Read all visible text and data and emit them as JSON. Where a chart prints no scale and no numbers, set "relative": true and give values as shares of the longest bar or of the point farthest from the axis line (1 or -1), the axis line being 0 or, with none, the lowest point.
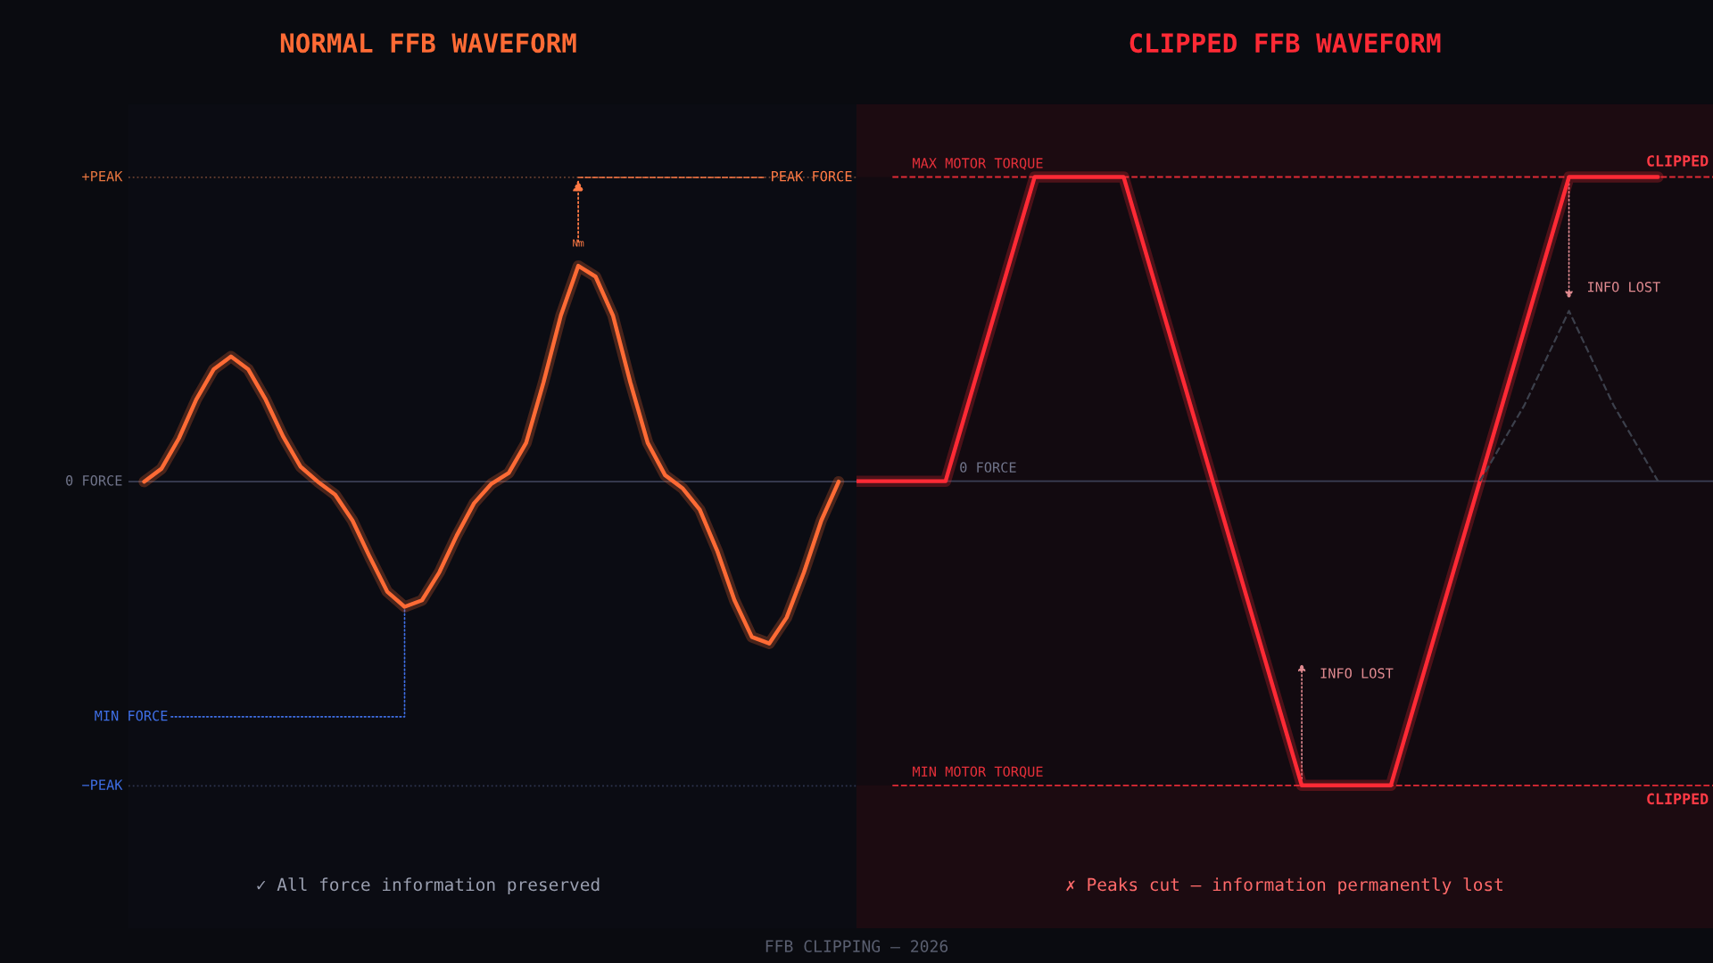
{
  "chart_data": [
    {
      "type": "line",
      "title": "NORMAL FFB WAVEFORM",
      "relative": true,
      "categories": [
        null,
        null,
        null,
        null,
        null,
        null,
        null,
        null,
        null,
        null,
        null,
        null,
        null,
        null,
        null,
        null,
        null,
        null,
        null,
        null,
        null,
        null,
        null,
        null,
        null,
        null,
        null,
        null,
        null,
        null,
        null,
        null,
        null,
        null,
        null,
        null,
        null,
        null,
        null,
        null,
        null
      ],
      "series": [
        {
          "color": "#ff6b35",
          "values": [
            0,
            0.06,
            0.2,
            0.38,
            0.52,
            0.58,
            0.52,
            0.38,
            0.21,
            0.07,
            0,
            -0.06,
            -0.18,
            -0.35,
            -0.51,
            -0.58,
            -0.55,
            -0.42,
            -0.25,
            -0.1,
            -0.01,
            0.04,
            0.18,
            0.46,
            0.77,
            1,
            0.95,
            0.77,
            0.46,
            0.18,
            0.03,
            -0.03,
            -0.13,
            -0.32,
            -0.55,
            -0.72,
            -0.75,
            -0.63,
            -0.42,
            -0.18,
            0
          ]
        }
      ],
      "ref_lines": [
        {
          "axis": "y",
          "value": 1.41,
          "label": "+PEAK",
          "color": "#6a4030",
          "line_style": "dotted"
        },
        {
          "axis": "y",
          "value": 0,
          "label": "0 FORCE",
          "color": "#3b3f55"
        },
        {
          "axis": "y",
          "value": -1.41,
          "label": "−PEAK",
          "color": "#2e3550",
          "line_style": "dotted"
        }
      ],
      "annotations": [
        "PEAK FORCE",
        "Nm",
        "MIN FORCE",
        "✓ All force information preserved"
      ]
    },
    {
      "type": "line",
      "title": "CLIPPED FFB WAVEFORM",
      "relative": true,
      "categories": [
        null,
        null,
        null,
        null,
        null,
        null,
        null,
        null,
        null,
        null,
        null,
        null,
        null,
        null,
        null,
        null,
        null,
        null,
        null
      ],
      "series": [
        {
          "color": "#ff2a35",
          "values": [
            0,
            0,
            0,
            0.5,
            1,
            1,
            1,
            0.5,
            0,
            -0.5,
            -1,
            -1,
            -1,
            -0.5,
            0,
            0.5,
            1,
            1,
            1
          ]
        },
        {
          "color": "#3c404c",
          "line_style": "dashed",
          "values": [
            null,
            null,
            null,
            null,
            null,
            null,
            null,
            null,
            null,
            null,
            null,
            null,
            null,
            null,
            0,
            0.25,
            0.56,
            0.25,
            0
          ]
        }
      ],
      "ref_lines": [
        {
          "axis": "y",
          "value": 1,
          "label": "MAX MOTOR TORQUE",
          "color": "#e02a35",
          "line_style": "dashed"
        },
        {
          "axis": "y",
          "value": 0,
          "label": "0 FORCE",
          "color": "#3b3f55"
        },
        {
          "axis": "y",
          "value": -1,
          "label": "MIN MOTOR TORQUE",
          "color": "#e02a35",
          "line_style": "dashed"
        }
      ],
      "bands": [
        {
          "axis": "y",
          "from": 1,
          "to": 1.24,
          "color": "#1c0b11"
        },
        {
          "axis": "y",
          "from": -1.47,
          "to": -1,
          "color": "#1c0b11"
        }
      ],
      "annotations": [
        "CLIPPED",
        "CLIPPED",
        "INFO LOST",
        "INFO LOST",
        "✗ Peaks cut — information permanently lost",
        "FFB CLIPPING — 2026"
      ]
    }
  ]
}
